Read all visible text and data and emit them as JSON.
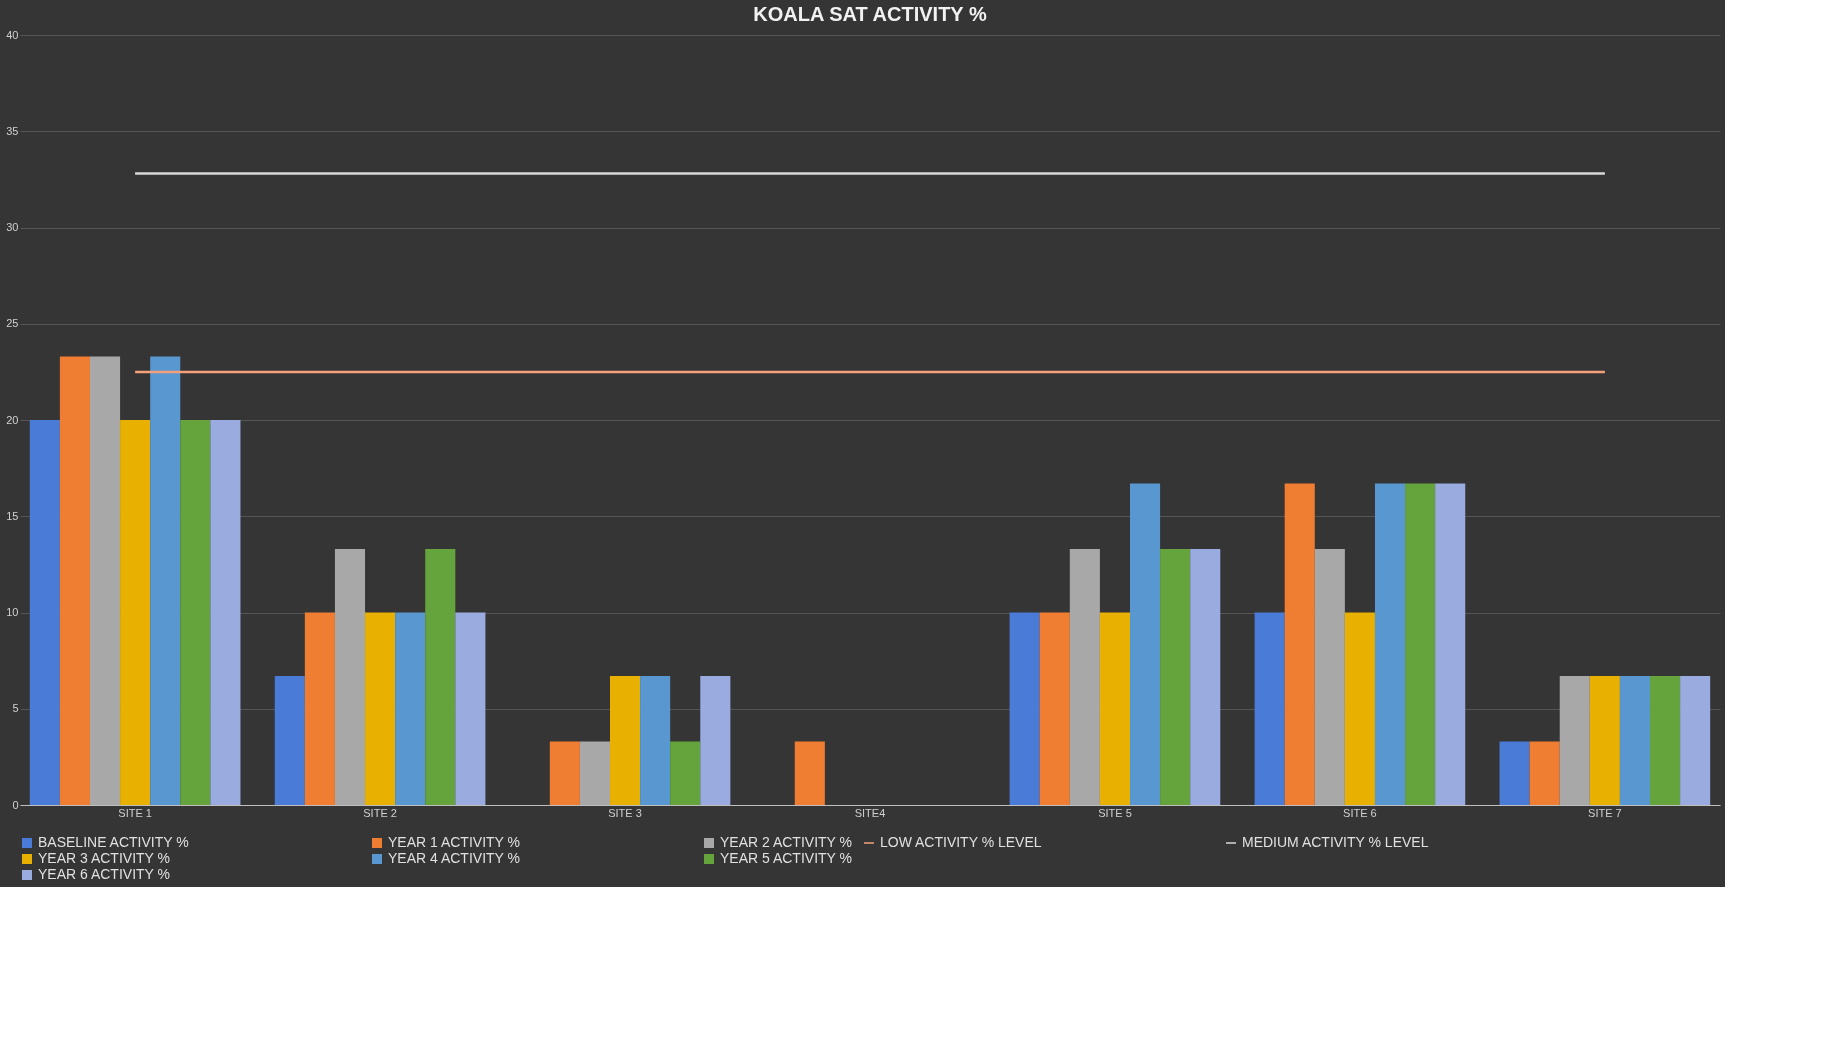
{
  "chart_data": {
    "type": "bar",
    "title": "KOALA SAT ACTIVITY %",
    "categories": [
      "SITE 1",
      "SITE 2",
      "SITE 3",
      "SITE4",
      "SITE 5",
      "SITE 6",
      "SITE 7"
    ],
    "series": [
      {
        "name": "BASELINE ACTIVITY %",
        "color": "#4a7bd6",
        "values": [
          20,
          6.7,
          0,
          0,
          10,
          10,
          3.3
        ]
      },
      {
        "name": "YEAR 1 ACTIVITY %",
        "color": "#f07e32",
        "values": [
          23.3,
          10,
          3.3,
          3.3,
          10,
          16.7,
          3.3
        ]
      },
      {
        "name": "YEAR 2 ACTIVITY %",
        "color": "#a8a8a8",
        "values": [
          23.3,
          13.3,
          3.3,
          0,
          13.3,
          13.3,
          6.7
        ]
      },
      {
        "name": "YEAR 3 ACTIVITY %",
        "color": "#e8b000",
        "values": [
          20,
          10,
          6.7,
          0,
          10,
          10,
          6.7
        ]
      },
      {
        "name": "YEAR 4 ACTIVITY %",
        "color": "#5897d0",
        "values": [
          23.3,
          10,
          6.7,
          0,
          16.7,
          16.7,
          6.7
        ]
      },
      {
        "name": "YEAR 5 ACTIVITY %",
        "color": "#65a43d",
        "values": [
          20,
          13.3,
          3.3,
          0,
          13.3,
          16.7,
          6.7
        ]
      },
      {
        "name": "YEAR 6 ACTIVITY %",
        "color": "#9aabe0",
        "values": [
          20,
          10,
          6.7,
          0,
          13.3,
          16.7,
          6.7
        ]
      },
      {
        "name": "LOW ACTIVITY % LEVEL",
        "color": "#f4a07a",
        "type": "line",
        "values": [
          22.5,
          22.5,
          22.5,
          22.5,
          22.5,
          22.5,
          22.5
        ]
      },
      {
        "name": "MEDIUM ACTIVITY % LEVEL",
        "color": "#d9d9d9",
        "type": "line",
        "values": [
          32.8,
          32.8,
          32.8,
          32.8,
          32.8,
          32.8,
          32.8
        ]
      }
    ],
    "ylim": [
      0,
      40
    ],
    "yticks": [
      0,
      5,
      10,
      15,
      20,
      25,
      30,
      35,
      40
    ],
    "grid": "y",
    "legend": "bottom"
  }
}
